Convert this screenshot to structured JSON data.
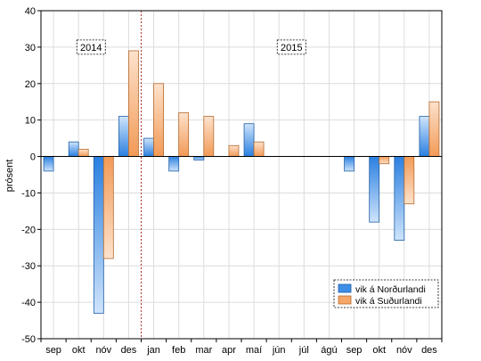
{
  "chart_data": {
    "type": "bar",
    "categories": [
      "sep",
      "okt",
      "nóv",
      "des",
      "jan",
      "feb",
      "mar",
      "apr",
      "maí",
      "jún",
      "júl",
      "ágú",
      "sep",
      "okt",
      "nóv",
      "des"
    ],
    "series": [
      {
        "name": "vik á Norðurlandi",
        "values": [
          -4,
          4,
          -43,
          11,
          5,
          -4,
          -1,
          0,
          9,
          0,
          0,
          0,
          -4,
          -18,
          -23,
          11
        ],
        "color": "#3d8ee6"
      },
      {
        "name": "vik á Suðurlandi",
        "values": [
          0,
          2,
          -28,
          29,
          20,
          12,
          11,
          3,
          4,
          0,
          0,
          0,
          0,
          -2,
          -13,
          15
        ],
        "color": "#f5a76a"
      }
    ],
    "ylabel": "prósent",
    "xlabel": "",
    "ylim": [
      -50,
      40
    ],
    "yticks": [
      -50,
      -40,
      -30,
      -20,
      -10,
      0,
      10,
      20,
      30,
      40
    ],
    "grid": true,
    "legend_placement": "bottom-right",
    "annotations": [
      {
        "text": "2014",
        "category_index": 1.5,
        "y": 30
      },
      {
        "text": "2015",
        "category_index": 9.5,
        "y": 30
      }
    ],
    "divider_after_category": 3
  }
}
